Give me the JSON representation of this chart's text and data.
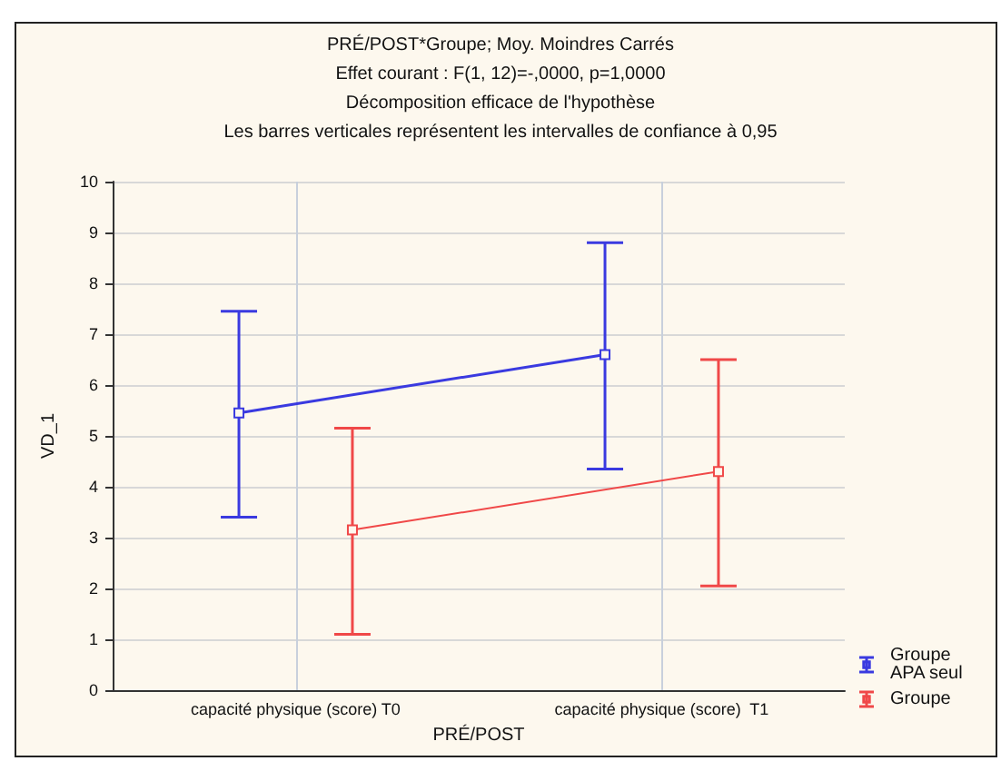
{
  "chart_data": {
    "type": "line",
    "title": "PRÉ/POST*Groupe; Moy. Moindres Carrés",
    "subtitle": "Effet courant : F(1, 12)=-,0000, p=1,0000",
    "annotations": [
      "Décomposition efficace de l'hypothèse",
      "Les barres verticales représentent les intervalles de confiance à 0,95"
    ],
    "xlabel": "PRÉ/POST",
    "ylabel": "VD_1",
    "categories": [
      "capacité physique (score) T0",
      "capacité physique (score)  T1"
    ],
    "series": [
      {
        "name": "Groupe APA seul",
        "color": "#3a3ae0",
        "values": [
          5.45,
          6.6
        ],
        "errors": [
          [
            3.4,
            7.45
          ],
          [
            4.35,
            8.8
          ]
        ]
      },
      {
        "name": "Groupe",
        "color": "#f04848",
        "values": [
          3.15,
          4.3
        ],
        "errors": [
          [
            1.1,
            5.15
          ],
          [
            2.05,
            6.5
          ]
        ]
      }
    ],
    "ylim": [
      0,
      10
    ],
    "yticks": [
      0,
      1,
      2,
      3,
      4,
      5,
      6,
      7,
      8,
      9,
      10
    ],
    "grid": true,
    "legend": "bottom right",
    "marker": "square",
    "line_style": "solid"
  }
}
